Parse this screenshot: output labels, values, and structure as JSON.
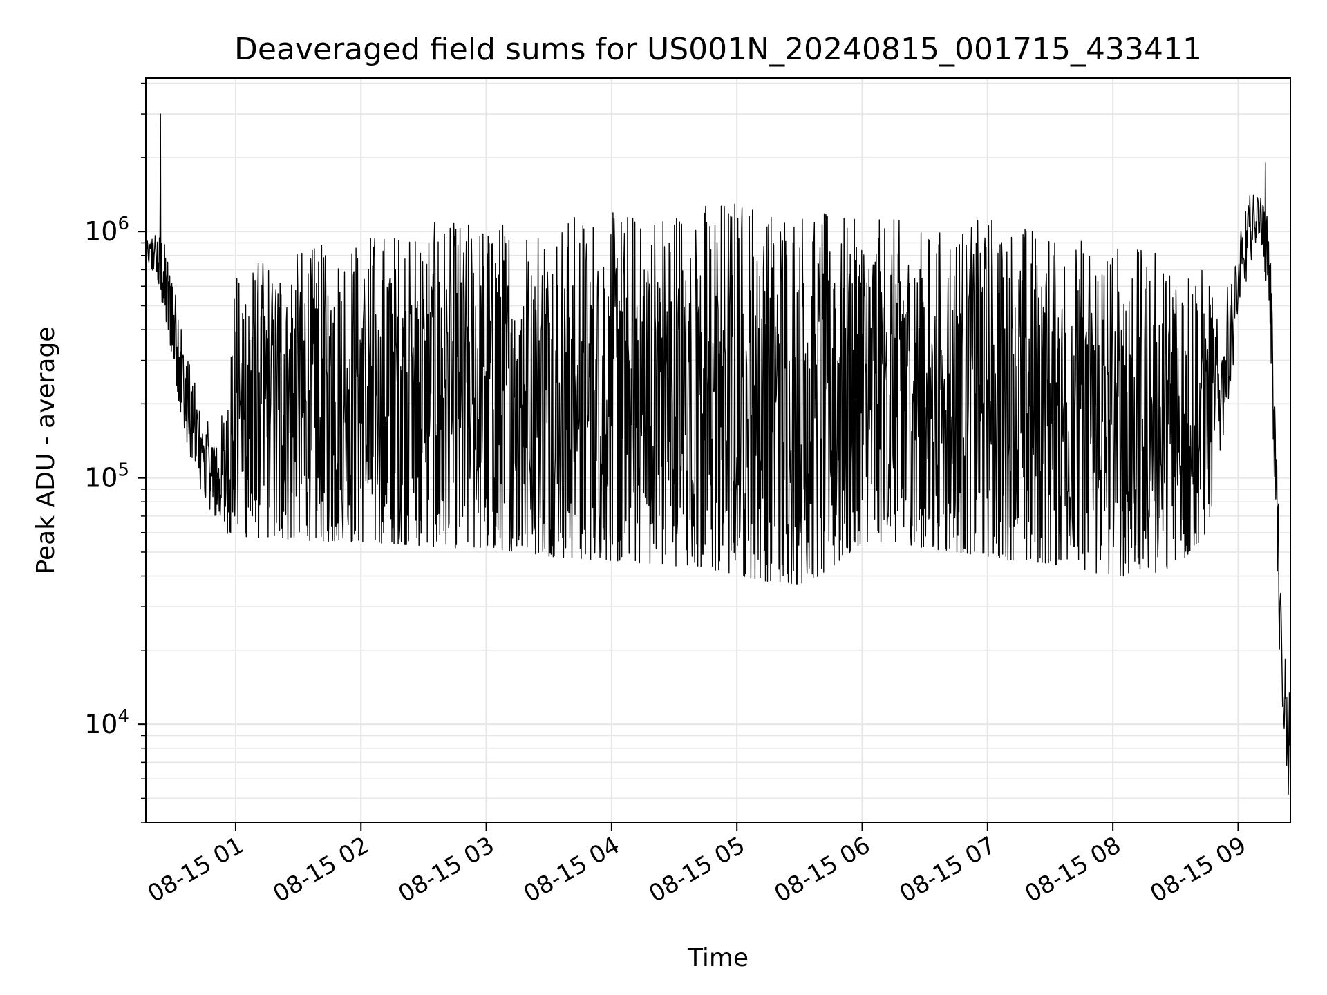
{
  "chart_data": {
    "type": "line",
    "title": "Deaveraged field sums for US001N_20240815_001715_433411",
    "xlabel": "Time",
    "ylabel": "Peak ADU - average",
    "yscale": "log",
    "ylim": [
      4000,
      4200000
    ],
    "xlim": [
      "2024-08-15 00:17",
      "2024-08-15 09:25"
    ],
    "grid": true,
    "line_color": "#000000",
    "grid_color": "#e6e6e6",
    "x_ticks": [
      "08-15 01",
      "08-15 02",
      "08-15 03",
      "08-15 04",
      "08-15 05",
      "08-15 06",
      "08-15 07",
      "08-15 08",
      "08-15 09"
    ],
    "y_ticks": [
      {
        "value": 10000,
        "base": "10",
        "exp": "4"
      },
      {
        "value": 100000,
        "base": "10",
        "exp": "5"
      },
      {
        "value": 1000000,
        "base": "10",
        "exp": "6"
      }
    ],
    "series": [
      {
        "x": [
          "2024-08-15 00:17",
          "2024-08-15 00:21",
          "2024-08-15 00:25",
          "2024-08-15 00:30",
          "2024-08-15 00:35",
          "2024-08-15 00:40",
          "2024-08-15 00:45",
          "2024-08-15 00:50",
          "2024-08-15 00:55",
          "2024-08-15 01:00",
          "2024-08-15 01:15",
          "2024-08-15 01:30",
          "2024-08-15 01:45",
          "2024-08-15 02:00",
          "2024-08-15 02:15",
          "2024-08-15 02:30",
          "2024-08-15 02:45",
          "2024-08-15 03:00",
          "2024-08-15 03:15",
          "2024-08-15 03:30",
          "2024-08-15 03:45",
          "2024-08-15 04:00",
          "2024-08-15 04:15",
          "2024-08-15 04:30",
          "2024-08-15 04:45",
          "2024-08-15 05:00",
          "2024-08-15 05:15",
          "2024-08-15 05:30",
          "2024-08-15 05:45",
          "2024-08-15 06:00",
          "2024-08-15 06:15",
          "2024-08-15 06:30",
          "2024-08-15 06:45",
          "2024-08-15 07:00",
          "2024-08-15 07:15",
          "2024-08-15 07:30",
          "2024-08-15 07:45",
          "2024-08-15 08:00",
          "2024-08-15 08:15",
          "2024-08-15 08:30",
          "2024-08-15 08:45",
          "2024-08-15 08:50",
          "2024-08-15 08:55",
          "2024-08-15 09:00",
          "2024-08-15 09:05",
          "2024-08-15 09:10",
          "2024-08-15 09:15",
          "2024-08-15 09:18",
          "2024-08-15 09:21",
          "2024-08-15 09:23",
          "2024-08-15 09:25"
        ],
        "y_high": [
          900000,
          1000000,
          950000,
          700000,
          400000,
          250000,
          180000,
          150000,
          200000,
          700000,
          800000,
          850000,
          900000,
          1000000,
          1000000,
          1100000,
          1100000,
          1100000,
          1150000,
          1150000,
          1200000,
          1200000,
          1250000,
          1300000,
          1350000,
          1400000,
          1350000,
          1300000,
          1200000,
          1100000,
          1150000,
          1000000,
          1050000,
          1200000,
          1100000,
          1000000,
          950000,
          900000,
          850000,
          800000,
          700000,
          450000,
          600000,
          900000,
          1400000,
          1500000,
          1100000,
          200000,
          22000,
          18000,
          14000
        ],
        "y_low": [
          650000,
          700000,
          500000,
          300000,
          150000,
          100000,
          80000,
          70000,
          60000,
          58000,
          57000,
          56000,
          55000,
          55000,
          54000,
          53000,
          52000,
          52000,
          50000,
          48000,
          47000,
          46000,
          45000,
          44000,
          43000,
          40000,
          38000,
          37000,
          42000,
          55000,
          55000,
          52000,
          50000,
          48000,
          46000,
          45000,
          42000,
          40000,
          40000,
          42000,
          60000,
          100000,
          200000,
          400000,
          700000,
          1000000,
          500000,
          60000,
          9000,
          6000,
          8000
        ],
        "noted_peaks": [
          {
            "x": "2024-08-15 00:24",
            "y": 3000000
          },
          {
            "x": "2024-08-15 09:13",
            "y": 1900000
          },
          {
            "x": "2024-08-15 09:24",
            "y": 5200
          }
        ]
      }
    ]
  }
}
